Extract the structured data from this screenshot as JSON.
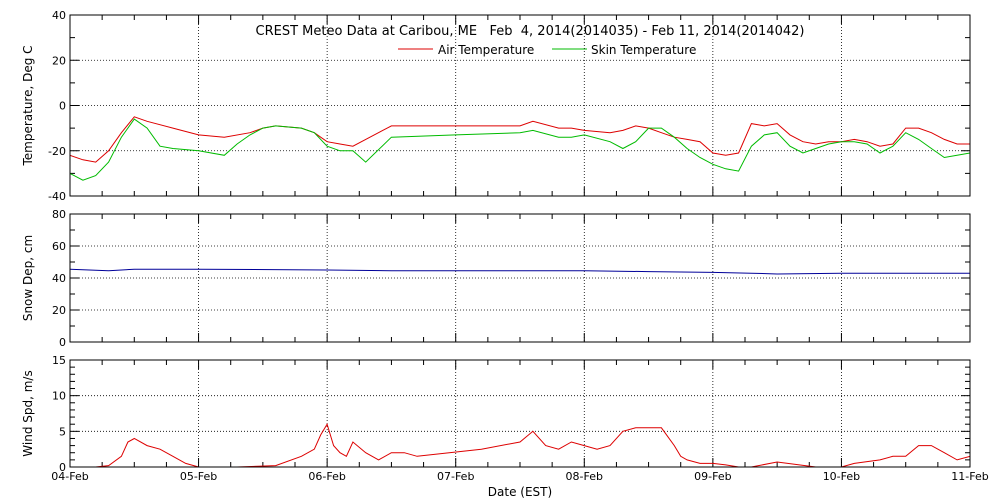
{
  "title": "CREST Meteo Data at Caribou, ME   Feb  4, 2014(2014035) - Feb 11, 2014(2014042)",
  "xlabel": "Date (EST)",
  "x_ticks": [
    "04-Feb",
    "05-Feb",
    "06-Feb",
    "07-Feb",
    "08-Feb",
    "09-Feb",
    "10-Feb",
    "11-Feb"
  ],
  "colors": {
    "air": "#dd0000",
    "skin": "#00bb00",
    "snow": "#000099",
    "wind": "#dd0000",
    "axis": "#000000"
  },
  "chart_data": [
    {
      "type": "line",
      "ylabel": "Temperature, Deg C",
      "xlim": [
        0,
        7
      ],
      "ylim": [
        -40,
        40
      ],
      "y_ticks": [
        "-40",
        "-20",
        "0",
        "20",
        "40"
      ],
      "grid": true,
      "legend": "top-center",
      "series": [
        {
          "name": "Air Temperature",
          "x": [
            0,
            0.1,
            0.2,
            0.3,
            0.4,
            0.5,
            0.6,
            0.8,
            1.0,
            1.2,
            1.4,
            1.5,
            1.6,
            1.8,
            1.9,
            2.0,
            2.1,
            2.2,
            2.3,
            2.5,
            3.0,
            3.5,
            3.6,
            3.8,
            3.9,
            4.0,
            4.2,
            4.3,
            4.4,
            4.5,
            4.6,
            4.7,
            4.8,
            4.9,
            5.0,
            5.1,
            5.2,
            5.3,
            5.4,
            5.5,
            5.6,
            5.7,
            5.8,
            5.9,
            6.0,
            6.1,
            6.2,
            6.3,
            6.4,
            6.5,
            6.6,
            6.7,
            6.8,
            6.9,
            7.0
          ],
          "y": [
            -22,
            -24,
            -25,
            -20,
            -12,
            -5,
            -7,
            -10,
            -13,
            -14,
            -12,
            -10,
            -9,
            -10,
            -12,
            -16,
            -17,
            -18,
            -15,
            -9,
            -9,
            -9,
            -7,
            -10,
            -10,
            -11,
            -12,
            -11,
            -9,
            -10,
            -12,
            -14,
            -15,
            -16,
            -21,
            -22,
            -21,
            -8,
            -9,
            -8,
            -13,
            -16,
            -17,
            -16,
            -16,
            -15,
            -16,
            -18,
            -17,
            -10,
            -10,
            -12,
            -15,
            -17,
            -17
          ]
        },
        {
          "name": "Skin Temperature",
          "x": [
            0,
            0.1,
            0.2,
            0.3,
            0.4,
            0.5,
            0.6,
            0.7,
            0.8,
            1.0,
            1.2,
            1.3,
            1.4,
            1.5,
            1.6,
            1.8,
            1.9,
            2.0,
            2.1,
            2.2,
            2.3,
            2.5,
            3.0,
            3.5,
            3.6,
            3.8,
            3.9,
            4.0,
            4.2,
            4.3,
            4.4,
            4.5,
            4.6,
            4.7,
            4.8,
            4.9,
            5.0,
            5.1,
            5.2,
            5.3,
            5.4,
            5.5,
            5.6,
            5.7,
            5.8,
            5.9,
            6.0,
            6.1,
            6.2,
            6.3,
            6.4,
            6.5,
            6.6,
            6.7,
            6.8,
            6.9,
            7.0
          ],
          "y": [
            -30,
            -33,
            -31,
            -25,
            -14,
            -6,
            -10,
            -18,
            -19,
            -20,
            -22,
            -17,
            -13,
            -10,
            -9,
            -10,
            -12,
            -18,
            -20,
            -20,
            -25,
            -14,
            -13,
            -12,
            -11,
            -14,
            -14,
            -13,
            -16,
            -19,
            -16,
            -10,
            -10,
            -14,
            -19,
            -23,
            -26,
            -28,
            -29,
            -18,
            -13,
            -12,
            -18,
            -21,
            -19,
            -17,
            -16,
            -16,
            -17,
            -21,
            -18,
            -12,
            -15,
            -19,
            -23,
            -22,
            -21
          ]
        }
      ]
    },
    {
      "type": "line",
      "ylabel": "Snow Dep, cm",
      "xlim": [
        0,
        7
      ],
      "ylim": [
        0,
        80
      ],
      "y_ticks": [
        "0",
        "20",
        "40",
        "60",
        "80"
      ],
      "grid": true,
      "series": [
        {
          "x": [
            0,
            0.3,
            0.5,
            1.0,
            2.0,
            2.5,
            3.5,
            4.0,
            4.5,
            5.0,
            5.3,
            5.5,
            6.0,
            6.5,
            7.0
          ],
          "y": [
            45.5,
            44.5,
            45.5,
            45.5,
            45,
            44.5,
            44.5,
            44.5,
            44,
            43.5,
            43,
            42.5,
            43,
            43,
            43
          ]
        }
      ]
    },
    {
      "type": "line",
      "ylabel": "Wind Spd, m/s",
      "xlim": [
        0,
        7
      ],
      "ylim": [
        0,
        15
      ],
      "y_ticks": [
        "0",
        "5",
        "10",
        "15"
      ],
      "grid": true,
      "series": [
        {
          "x": [
            0,
            0.2,
            0.3,
            0.4,
            0.45,
            0.5,
            0.6,
            0.7,
            0.8,
            0.9,
            1.0,
            1.1,
            1.3,
            1.6,
            1.8,
            1.9,
            1.95,
            2.0,
            2.05,
            2.1,
            2.15,
            2.2,
            2.3,
            2.4,
            2.5,
            2.6,
            2.7,
            3.2,
            3.5,
            3.6,
            3.7,
            3.8,
            3.9,
            4.0,
            4.1,
            4.2,
            4.3,
            4.4,
            4.5,
            4.6,
            4.7,
            4.75,
            4.8,
            4.9,
            5.0,
            5.1,
            5.2,
            5.3,
            5.5,
            5.8,
            6.0,
            6.1,
            6.3,
            6.4,
            6.5,
            6.6,
            6.7,
            6.8,
            6.9,
            7.0
          ],
          "y": [
            0,
            0,
            0.2,
            1.5,
            3.5,
            4,
            3,
            2.5,
            1.5,
            0.5,
            0,
            0,
            0,
            0.2,
            1.5,
            2.5,
            4.5,
            6,
            3,
            2,
            1.5,
            3.5,
            2,
            1,
            2,
            2,
            1.5,
            2.5,
            3.5,
            5,
            3,
            2.5,
            3.5,
            3,
            2.5,
            3,
            5,
            5.5,
            5.5,
            5.5,
            3,
            1.5,
            1,
            0.5,
            0.5,
            0.3,
            0,
            0,
            0.7,
            0,
            0,
            0.5,
            1,
            1.5,
            1.5,
            3,
            3,
            2,
            1,
            1.5
          ]
        }
      ]
    }
  ]
}
